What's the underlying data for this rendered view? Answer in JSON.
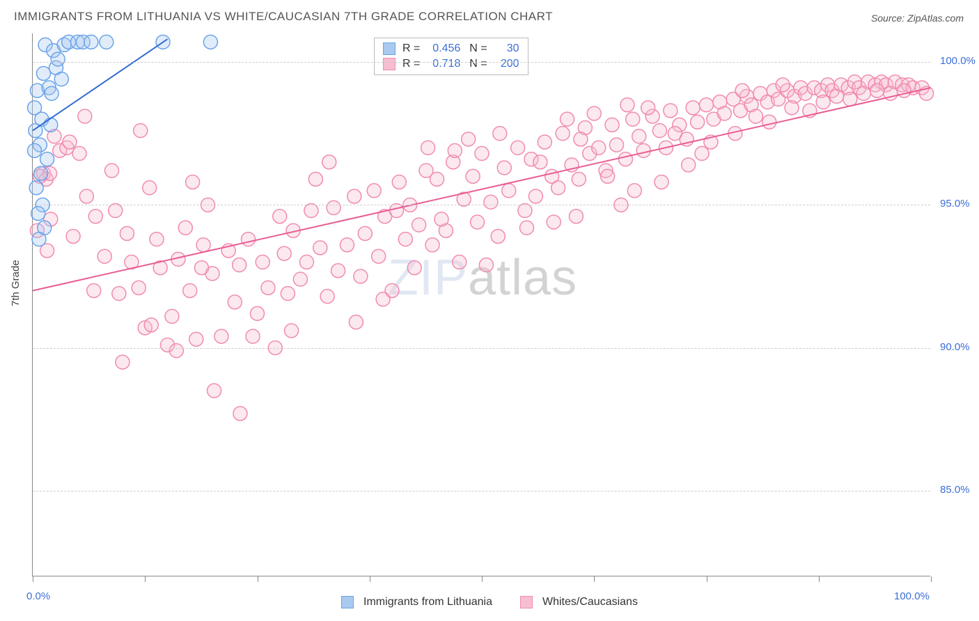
{
  "title": "IMMIGRANTS FROM LITHUANIA VS WHITE/CAUCASIAN 7TH GRADE CORRELATION CHART",
  "source_label": "Source: ZipAtlas.com",
  "y_axis_title": "7th Grade",
  "watermark_a": "ZIP",
  "watermark_b": "atlas",
  "chart": {
    "type": "scatter",
    "background_color": "#ffffff",
    "grid_color": "#cccccc",
    "axis_color": "#888888",
    "tick_label_color": "#3b6fd6",
    "xlim": [
      0,
      100
    ],
    "ylim": [
      82,
      101
    ],
    "x_ticks": [
      0,
      100
    ],
    "x_tick_labels": [
      "0.0%",
      "100.0%"
    ],
    "minor_x_ticks": [
      12.5,
      25,
      37.5,
      50,
      62.5,
      75,
      87.5
    ],
    "y_ticks": [
      85,
      90,
      95,
      100
    ],
    "y_tick_labels": [
      "85.0%",
      "90.0%",
      "95.0%",
      "100.0%"
    ],
    "marker_radius": 10,
    "marker_fill_opacity": 0.35,
    "series": [
      {
        "name": "Immigrants from Lithuania",
        "color_stroke": "#6aa3e8",
        "color_fill": "#a8c9f0",
        "R": 0.456,
        "N": 30,
        "trend": {
          "x1": 0,
          "y1": 97.6,
          "x2": 15,
          "y2": 100.8,
          "color": "#2f6bd1",
          "width": 2
        },
        "points": [
          [
            0.3,
            97.6
          ],
          [
            0.2,
            98.4
          ],
          [
            0.5,
            99.0
          ],
          [
            0.8,
            97.1
          ],
          [
            1.0,
            98.0
          ],
          [
            1.2,
            99.6
          ],
          [
            1.4,
            100.6
          ],
          [
            1.8,
            99.1
          ],
          [
            2.0,
            97.8
          ],
          [
            2.3,
            100.4
          ],
          [
            2.6,
            99.8
          ],
          [
            0.9,
            96.1
          ],
          [
            0.4,
            95.6
          ],
          [
            1.1,
            95.0
          ],
          [
            1.6,
            96.6
          ],
          [
            2.1,
            98.9
          ],
          [
            2.8,
            100.1
          ],
          [
            3.2,
            99.4
          ],
          [
            3.5,
            100.6
          ],
          [
            4.0,
            100.7
          ],
          [
            5.0,
            100.7
          ],
          [
            5.6,
            100.7
          ],
          [
            6.5,
            100.7
          ],
          [
            8.2,
            100.7
          ],
          [
            14.5,
            100.7
          ],
          [
            19.8,
            100.7
          ],
          [
            0.6,
            94.7
          ],
          [
            0.2,
            96.9
          ],
          [
            1.3,
            94.2
          ],
          [
            0.7,
            93.8
          ]
        ]
      },
      {
        "name": "Whites/Caucasians",
        "color_stroke": "#f08bb0",
        "color_fill": "#f7bed2",
        "R": 0.718,
        "N": 200,
        "trend": {
          "x1": 0,
          "y1": 92.0,
          "x2": 100,
          "y2": 99.1,
          "color": "#e85d94",
          "width": 2
        },
        "points": [
          [
            1.2,
            96.1
          ],
          [
            1.5,
            95.9
          ],
          [
            1.9,
            96.1
          ],
          [
            3.0,
            96.9
          ],
          [
            3.8,
            97.0
          ],
          [
            5.2,
            96.8
          ],
          [
            6.0,
            95.3
          ],
          [
            7.0,
            94.6
          ],
          [
            8.0,
            93.2
          ],
          [
            9.2,
            94.8
          ],
          [
            9.6,
            91.9
          ],
          [
            10.5,
            94.0
          ],
          [
            11.0,
            93.0
          ],
          [
            11.8,
            92.1
          ],
          [
            12.5,
            90.7
          ],
          [
            13.0,
            95.6
          ],
          [
            13.8,
            93.8
          ],
          [
            14.2,
            92.8
          ],
          [
            15.0,
            90.1
          ],
          [
            15.5,
            91.1
          ],
          [
            16.2,
            93.1
          ],
          [
            17.0,
            94.2
          ],
          [
            17.5,
            92.0
          ],
          [
            18.2,
            90.3
          ],
          [
            19.0,
            93.6
          ],
          [
            20.0,
            92.6
          ],
          [
            20.2,
            88.5
          ],
          [
            21.0,
            90.4
          ],
          [
            21.8,
            93.4
          ],
          [
            22.5,
            91.6
          ],
          [
            23.0,
            92.9
          ],
          [
            23.1,
            87.7
          ],
          [
            24.0,
            93.8
          ],
          [
            25.0,
            91.2
          ],
          [
            25.6,
            93.0
          ],
          [
            26.2,
            92.1
          ],
          [
            27.0,
            90.0
          ],
          [
            28.0,
            93.3
          ],
          [
            28.4,
            91.9
          ],
          [
            29.0,
            94.1
          ],
          [
            29.8,
            92.4
          ],
          [
            30.5,
            93.0
          ],
          [
            31.0,
            94.8
          ],
          [
            32.0,
            93.5
          ],
          [
            32.8,
            91.8
          ],
          [
            33.5,
            94.9
          ],
          [
            34.0,
            92.7
          ],
          [
            35.0,
            93.6
          ],
          [
            35.8,
            95.3
          ],
          [
            36.5,
            92.5
          ],
          [
            37.0,
            94.0
          ],
          [
            38.0,
            95.5
          ],
          [
            38.5,
            93.2
          ],
          [
            39.2,
            94.6
          ],
          [
            40.0,
            92.0
          ],
          [
            40.8,
            95.8
          ],
          [
            41.5,
            93.8
          ],
          [
            42.0,
            95.0
          ],
          [
            43.0,
            94.3
          ],
          [
            43.8,
            96.2
          ],
          [
            44.5,
            93.6
          ],
          [
            45.0,
            95.9
          ],
          [
            46.0,
            94.1
          ],
          [
            46.8,
            96.5
          ],
          [
            47.5,
            93.0
          ],
          [
            48.0,
            95.2
          ],
          [
            49.0,
            96.0
          ],
          [
            49.5,
            94.4
          ],
          [
            50.0,
            96.8
          ],
          [
            51.0,
            95.1
          ],
          [
            51.8,
            93.9
          ],
          [
            52.5,
            96.3
          ],
          [
            53.0,
            95.5
          ],
          [
            54.0,
            97.0
          ],
          [
            54.8,
            94.8
          ],
          [
            55.5,
            96.6
          ],
          [
            56.0,
            95.3
          ],
          [
            57.0,
            97.2
          ],
          [
            57.8,
            96.0
          ],
          [
            58.5,
            95.6
          ],
          [
            59.0,
            97.5
          ],
          [
            60.0,
            96.4
          ],
          [
            60.8,
            95.9
          ],
          [
            61.5,
            97.7
          ],
          [
            62.0,
            96.8
          ],
          [
            63.0,
            97.0
          ],
          [
            63.8,
            96.2
          ],
          [
            64.5,
            97.8
          ],
          [
            65.0,
            97.1
          ],
          [
            66.0,
            96.6
          ],
          [
            66.8,
            98.0
          ],
          [
            67.5,
            97.4
          ],
          [
            68.0,
            96.9
          ],
          [
            69.0,
            98.1
          ],
          [
            69.8,
            97.6
          ],
          [
            70.5,
            97.0
          ],
          [
            71.0,
            98.3
          ],
          [
            72.0,
            97.8
          ],
          [
            72.8,
            97.3
          ],
          [
            73.5,
            98.4
          ],
          [
            74.0,
            97.9
          ],
          [
            75.0,
            98.5
          ],
          [
            75.8,
            98.0
          ],
          [
            76.5,
            98.6
          ],
          [
            77.0,
            98.2
          ],
          [
            78.0,
            98.7
          ],
          [
            78.8,
            98.3
          ],
          [
            79.5,
            98.8
          ],
          [
            80.0,
            98.5
          ],
          [
            81.0,
            98.9
          ],
          [
            81.8,
            98.6
          ],
          [
            82.5,
            99.0
          ],
          [
            83.0,
            98.7
          ],
          [
            84.0,
            99.0
          ],
          [
            84.8,
            98.8
          ],
          [
            85.5,
            99.1
          ],
          [
            86.0,
            98.9
          ],
          [
            87.0,
            99.1
          ],
          [
            87.8,
            99.0
          ],
          [
            88.5,
            99.2
          ],
          [
            89.0,
            99.0
          ],
          [
            90.0,
            99.2
          ],
          [
            90.8,
            99.1
          ],
          [
            91.5,
            99.3
          ],
          [
            92.0,
            99.1
          ],
          [
            93.0,
            99.3
          ],
          [
            93.8,
            99.2
          ],
          [
            94.5,
            99.3
          ],
          [
            95.0,
            99.2
          ],
          [
            96.0,
            99.3
          ],
          [
            96.8,
            99.2
          ],
          [
            97.5,
            99.2
          ],
          [
            98.0,
            99.1
          ],
          [
            99.0,
            99.1
          ],
          [
            99.5,
            98.9
          ],
          [
            2.4,
            97.4
          ],
          [
            4.1,
            97.2
          ],
          [
            8.8,
            96.2
          ],
          [
            17.8,
            95.8
          ],
          [
            31.5,
            95.9
          ],
          [
            42.5,
            92.8
          ],
          [
            39.0,
            91.7
          ],
          [
            47.0,
            96.9
          ],
          [
            50.5,
            92.9
          ],
          [
            62.5,
            98.2
          ],
          [
            66.2,
            98.5
          ],
          [
            70.0,
            95.8
          ],
          [
            5.8,
            98.1
          ],
          [
            10.0,
            89.5
          ],
          [
            13.2,
            90.8
          ],
          [
            16.0,
            89.9
          ],
          [
            18.8,
            92.8
          ],
          [
            24.5,
            90.4
          ],
          [
            28.8,
            90.6
          ],
          [
            36.0,
            90.9
          ],
          [
            48.5,
            97.3
          ],
          [
            58.0,
            94.4
          ],
          [
            65.5,
            95.0
          ],
          [
            73.0,
            96.4
          ],
          [
            78.2,
            97.5
          ],
          [
            82.0,
            97.9
          ],
          [
            86.5,
            98.3
          ],
          [
            91.0,
            98.7
          ],
          [
            95.5,
            98.9
          ],
          [
            0.8,
            96.0
          ],
          [
            2.0,
            94.5
          ],
          [
            4.5,
            93.9
          ],
          [
            6.8,
            92.0
          ],
          [
            19.5,
            95.0
          ],
          [
            27.5,
            94.6
          ],
          [
            33.0,
            96.5
          ],
          [
            44.0,
            97.0
          ],
          [
            52.0,
            97.5
          ],
          [
            59.5,
            98.0
          ],
          [
            67.0,
            95.5
          ],
          [
            74.5,
            96.8
          ],
          [
            79.0,
            99.0
          ],
          [
            83.5,
            99.2
          ],
          [
            88.0,
            98.6
          ],
          [
            92.5,
            98.9
          ],
          [
            97.0,
            99.0
          ],
          [
            56.5,
            96.5
          ],
          [
            61.0,
            97.3
          ],
          [
            64.0,
            96.0
          ],
          [
            68.5,
            98.4
          ],
          [
            71.5,
            97.5
          ],
          [
            75.5,
            97.2
          ],
          [
            80.5,
            98.1
          ],
          [
            84.5,
            98.4
          ],
          [
            89.5,
            98.8
          ],
          [
            94.0,
            99.0
          ],
          [
            40.5,
            94.8
          ],
          [
            45.5,
            94.5
          ],
          [
            55.0,
            94.2
          ],
          [
            60.5,
            94.6
          ],
          [
            12.0,
            97.6
          ],
          [
            0.5,
            94.1
          ],
          [
            1.6,
            93.4
          ]
        ]
      }
    ]
  },
  "bottom_legend": [
    {
      "label": "Immigrants from Lithuania",
      "fill": "#a8c9f0",
      "stroke": "#6aa3e8"
    },
    {
      "label": "Whites/Caucasians",
      "fill": "#f7bed2",
      "stroke": "#f08bb0"
    }
  ]
}
